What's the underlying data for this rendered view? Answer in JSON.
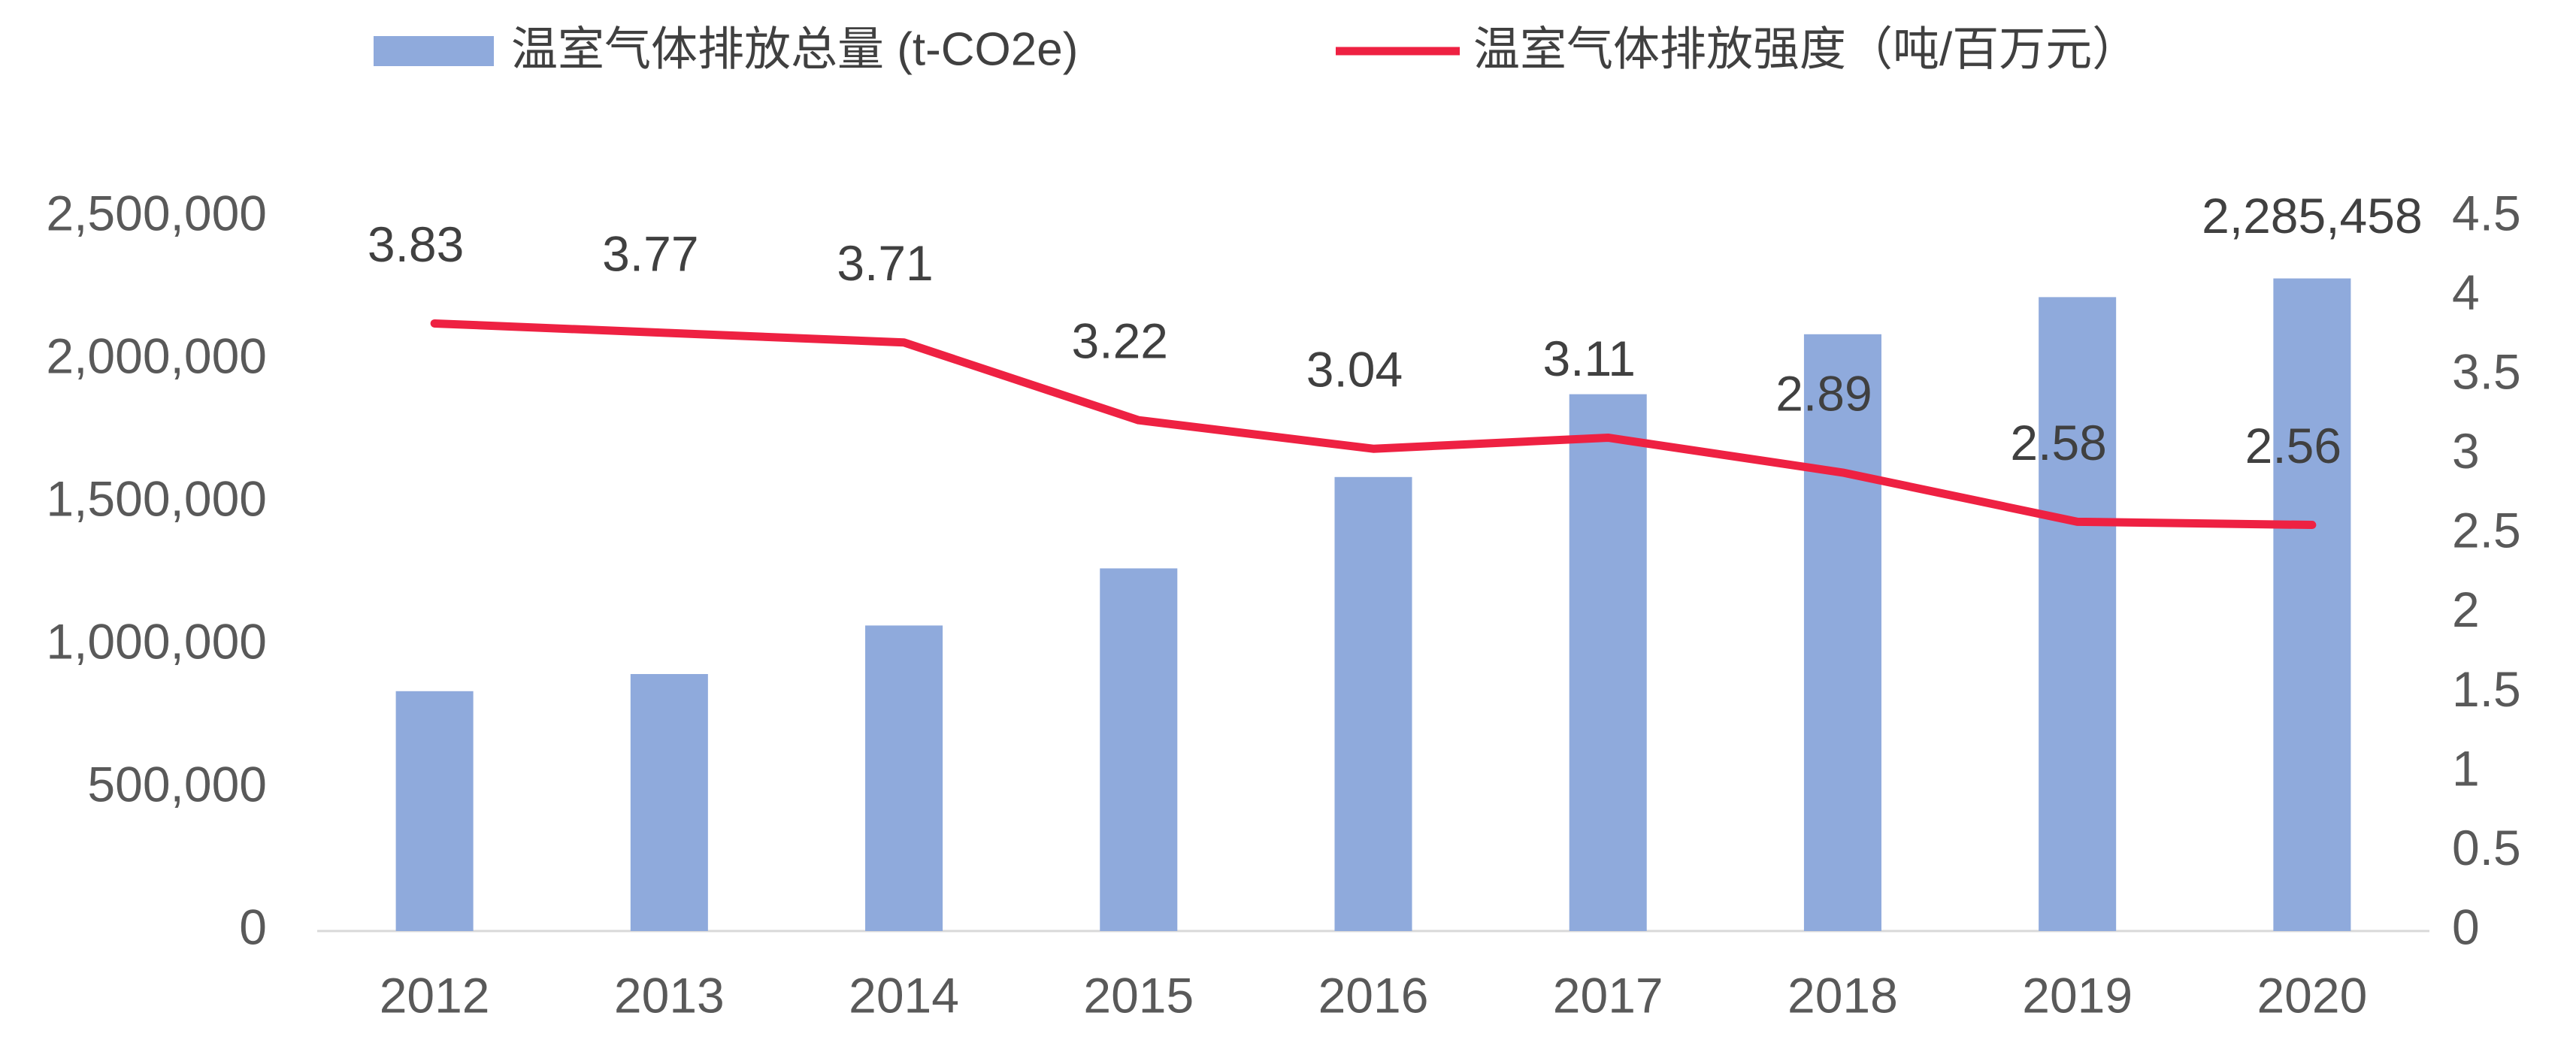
{
  "chart_data": {
    "type": "combo",
    "categories": [
      "2012",
      "2013",
      "2014",
      "2015",
      "2016",
      "2017",
      "2018",
      "2019",
      "2020"
    ],
    "series": [
      {
        "name": "温室气体排放总量 (t-CO2e)",
        "type": "bar",
        "color": "#8faadc",
        "values": [
          840000,
          900000,
          1070000,
          1270000,
          1590000,
          1880000,
          2090000,
          2220000,
          2285458
        ],
        "value_labels": [
          null,
          null,
          null,
          null,
          null,
          null,
          null,
          null,
          "2,285,458"
        ]
      },
      {
        "name": "温室气体排放强度（吨/百万元）",
        "type": "line",
        "color": "#ee2142",
        "axis": "y2",
        "values": [
          3.83,
          3.77,
          3.71,
          3.22,
          3.04,
          3.11,
          2.89,
          2.58,
          2.56
        ]
      }
    ],
    "ylim": [
      0,
      2500000
    ],
    "yticks": [
      0,
      {
        "value": 500000,
        "label": "500,000"
      },
      {
        "value": 1000000,
        "label": "1,000,000"
      },
      {
        "value": 1500000,
        "label": "1,500,000"
      },
      {
        "value": 2000000,
        "label": "2,000,000"
      },
      {
        "value": 2500000,
        "label": "2,500,000"
      }
    ],
    "y2lim": [
      0,
      4.5
    ],
    "y2ticks": [
      0,
      0.5,
      1,
      1.5,
      2,
      2.5,
      3,
      3.5,
      4,
      4.5
    ],
    "legend": "top"
  }
}
